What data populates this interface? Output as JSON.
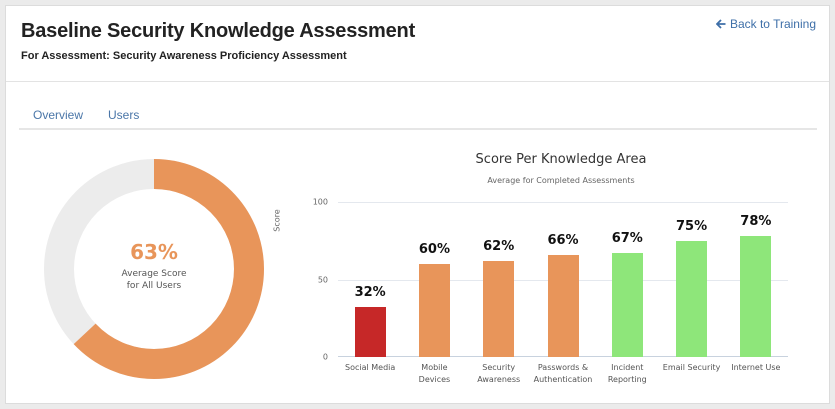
{
  "header": {
    "title": "Baseline Security Knowledge Assessment",
    "subtitle": "For Assessment: Security Awareness Proficiency Assessment",
    "back_link": "Back to Training",
    "back_icon": "arrow-left-icon"
  },
  "tabs": [
    {
      "label": "Overview"
    },
    {
      "label": "Users"
    }
  ],
  "donut": {
    "value": 63,
    "value_label": "63%",
    "caption_line1": "Average Score",
    "caption_line2": "for All Users",
    "fill_color": "#e8955a",
    "track_color": "#ececec"
  },
  "chart_data": {
    "type": "bar",
    "title": "Score Per Knowledge Area",
    "subtitle": "Average for Completed Assessments",
    "xlabel": "",
    "ylabel": "Score",
    "ylim": [
      0,
      100
    ],
    "yticks": [
      0,
      50,
      100
    ],
    "grid": true,
    "categories": [
      "Social Media",
      "Mobile Devices",
      "Security Awareness",
      "Passwords & Authentication",
      "Incident Reporting",
      "Email Security",
      "Internet Use"
    ],
    "category_lines": [
      [
        "Social Media"
      ],
      [
        "Mobile",
        "Devices"
      ],
      [
        "Security",
        "Awareness"
      ],
      [
        "Passwords &",
        "Authentication"
      ],
      [
        "Incident",
        "Reporting"
      ],
      [
        "Email Security"
      ],
      [
        "Internet Use"
      ]
    ],
    "values": [
      32,
      60,
      62,
      66,
      67,
      75,
      78
    ],
    "value_labels": [
      "32%",
      "60%",
      "62%",
      "66%",
      "67%",
      "75%",
      "78%"
    ],
    "colors": [
      "#c62828",
      "#e8955a",
      "#e8955a",
      "#e8955a",
      "#8ee67a",
      "#8ee67a",
      "#8ee67a"
    ]
  }
}
